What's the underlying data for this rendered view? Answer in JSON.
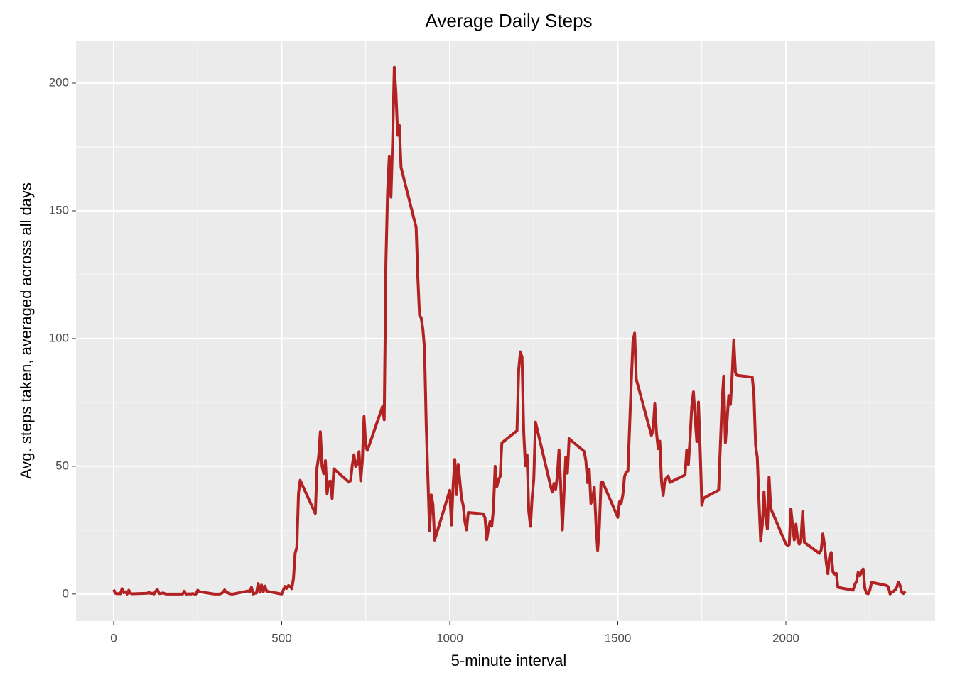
{
  "chart_data": {
    "type": "line",
    "title": "Average Daily Steps",
    "x_label": "5-minute interval",
    "y_label": "Avg. steps taken, averaged across all days",
    "x": [
      0,
      5,
      10,
      15,
      20,
      25,
      30,
      35,
      40,
      45,
      50,
      55,
      100,
      105,
      110,
      115,
      120,
      125,
      130,
      135,
      140,
      145,
      150,
      155,
      200,
      205,
      210,
      215,
      220,
      225,
      230,
      235,
      240,
      245,
      250,
      255,
      300,
      305,
      310,
      315,
      320,
      325,
      330,
      335,
      340,
      345,
      350,
      355,
      400,
      405,
      410,
      415,
      420,
      425,
      430,
      435,
      440,
      445,
      450,
      455,
      500,
      505,
      510,
      515,
      520,
      525,
      530,
      535,
      540,
      545,
      550,
      555,
      600,
      605,
      610,
      615,
      620,
      625,
      630,
      635,
      640,
      645,
      650,
      655,
      700,
      705,
      710,
      715,
      720,
      725,
      730,
      735,
      740,
      745,
      750,
      755,
      800,
      805,
      810,
      815,
      820,
      825,
      830,
      835,
      840,
      845,
      850,
      855,
      900,
      905,
      910,
      915,
      920,
      925,
      930,
      935,
      940,
      945,
      950,
      955,
      1000,
      1005,
      1010,
      1015,
      1020,
      1025,
      1030,
      1035,
      1040,
      1045,
      1050,
      1055,
      1100,
      1105,
      1110,
      1115,
      1120,
      1125,
      1130,
      1135,
      1140,
      1145,
      1150,
      1155,
      1200,
      1205,
      1210,
      1215,
      1220,
      1225,
      1230,
      1235,
      1240,
      1245,
      1250,
      1255,
      1300,
      1305,
      1310,
      1315,
      1320,
      1325,
      1330,
      1335,
      1340,
      1345,
      1350,
      1355,
      1400,
      1405,
      1410,
      1415,
      1420,
      1425,
      1430,
      1435,
      1440,
      1445,
      1450,
      1455,
      1500,
      1505,
      1510,
      1515,
      1520,
      1525,
      1530,
      1535,
      1540,
      1545,
      1550,
      1555,
      1600,
      1605,
      1610,
      1615,
      1620,
      1625,
      1630,
      1635,
      1640,
      1645,
      1650,
      1655,
      1700,
      1705,
      1710,
      1715,
      1720,
      1725,
      1730,
      1735,
      1740,
      1745,
      1750,
      1755,
      1800,
      1805,
      1810,
      1815,
      1820,
      1825,
      1830,
      1835,
      1840,
      1845,
      1850,
      1855,
      1900,
      1905,
      1910,
      1915,
      1920,
      1925,
      1930,
      1935,
      1940,
      1945,
      1950,
      1955,
      2000,
      2005,
      2010,
      2015,
      2020,
      2025,
      2030,
      2035,
      2040,
      2045,
      2050,
      2055,
      2100,
      2105,
      2110,
      2115,
      2120,
      2125,
      2130,
      2135,
      2140,
      2145,
      2150,
      2155,
      2200,
      2205,
      2210,
      2215,
      2220,
      2225,
      2230,
      2235,
      2240,
      2245,
      2250,
      2255,
      2300,
      2305,
      2310,
      2315,
      2320,
      2325,
      2330,
      2335,
      2340,
      2345,
      2350,
      2355
    ],
    "series": [
      {
        "color": "#b22222",
        "values": [
          1.7,
          0.3,
          0.1,
          0.2,
          0.1,
          2.1,
          0.5,
          0.9,
          0,
          1.5,
          0.3,
          0.1,
          0.3,
          0.7,
          0.2,
          0.3,
          0,
          1.1,
          1.8,
          0.2,
          0.2,
          0.4,
          0.3,
          0,
          0,
          0,
          1.1,
          0,
          0,
          0.1,
          0,
          0.2,
          0,
          0,
          1.5,
          0.9,
          0,
          0,
          0,
          0,
          0.2,
          0.6,
          1.6,
          0.6,
          0.5,
          0.1,
          0,
          0,
          1.2,
          0.9,
          2.6,
          0,
          0.3,
          0.4,
          4.1,
          0.7,
          3.5,
          0.8,
          3.1,
          1.1,
          0,
          1.6,
          3,
          2.2,
          3.3,
          3,
          2.1,
          6.1,
          16,
          18.3,
          39.5,
          44.5,
          31.5,
          49.3,
          53.8,
          63.5,
          50,
          47.1,
          52.2,
          39.3,
          44,
          44.2,
          37.4,
          49,
          43.8,
          44.4,
          50.5,
          54.5,
          49.9,
          51,
          55.7,
          44.3,
          52.3,
          69.5,
          57.8,
          56.2,
          73.4,
          68.2,
          129.4,
          157.5,
          171.2,
          155.4,
          177.3,
          206.2,
          195.9,
          179.6,
          183.4,
          167,
          143.5,
          124,
          109.1,
          108.1,
          103.7,
          96,
          66.2,
          45.2,
          24.8,
          38.8,
          35,
          21.1,
          40.6,
          27,
          42.4,
          52.7,
          38.9,
          50.8,
          44.3,
          37.4,
          34.7,
          28.3,
          25.1,
          31.9,
          31.4,
          29.7,
          21.3,
          25.5,
          28.4,
          26.5,
          33.4,
          50,
          42,
          44.6,
          46,
          59.2,
          63.9,
          87.7,
          94.8,
          92.8,
          63.4,
          50.2,
          54.5,
          32.4,
          26.5,
          37.7,
          45.1,
          67.3,
          42.3,
          39.9,
          43.3,
          41,
          46.2,
          56.4,
          42.8,
          25.1,
          39.9,
          53.5,
          47.3,
          60.8,
          55.8,
          52,
          43.6,
          48.7,
          35.5,
          37.5,
          41.8,
          27.5,
          17.1,
          26.1,
          43.6,
          43.8,
          30,
          36.1,
          35.5,
          38.8,
          46,
          47.8,
          48.1,
          65.3,
          82.9,
          98.7,
          102.1,
          84,
          62.1,
          64.1,
          74.5,
          63.2,
          56.9,
          59.8,
          43.9,
          38.6,
          44.7,
          45.5,
          46.2,
          43.7,
          46.6,
          56.3,
          50.7,
          61.2,
          73.4,
          79.1,
          68.9,
          59.7,
          75.1,
          56.5,
          34.8,
          37.5,
          40.7,
          58,
          74.7,
          85.3,
          59.3,
          67.8,
          77.7,
          74.2,
          85.3,
          99.5,
          86.6,
          85.6,
          84.9,
          77.8,
          58,
          53.4,
          36.3,
          20.7,
          27.4,
          40,
          30.2,
          25.5,
          45.7,
          33.5,
          19.6,
          19,
          19.3,
          33.3,
          26.8,
          21.2,
          27.3,
          21.3,
          19.5,
          21.3,
          32.3,
          20.2,
          15.9,
          17.2,
          23.5,
          19.2,
          12.5,
          8,
          14.7,
          16.3,
          8.7,
          7.8,
          8.1,
          2.6,
          1.5,
          3.7,
          4.8,
          8.5,
          7.1,
          8.7,
          9.8,
          2.2,
          0.3,
          0.1,
          1.6,
          4.6,
          3.3,
          2.8,
          0,
          0.8,
          1,
          1.6,
          2.6,
          4.7,
          3.3,
          0.6,
          0.2,
          1.1
        ]
      }
    ],
    "xlim": [
      -112,
      2444
    ],
    "ylim": [
      -10.6,
      216.4
    ],
    "xticks": [
      0,
      500,
      1000,
      1500,
      2000
    ],
    "yticks": [
      0,
      50,
      100,
      150,
      200
    ],
    "x_minor_grid": [
      250,
      750,
      1250,
      1750,
      2250
    ],
    "y_minor_grid": [
      25,
      75,
      125,
      175
    ],
    "grid": true
  }
}
